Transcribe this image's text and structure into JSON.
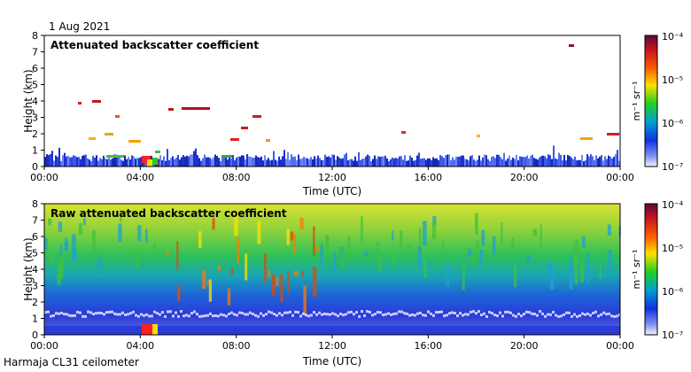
{
  "date": "1 Aug 2021",
  "footer": "Harmaja CL31 ceilometer",
  "chart_data": [
    {
      "type": "heatmap",
      "title": "Attenuated backscatter coefficient",
      "xlabel": "Time (UTC)",
      "ylabel": "Height (km)",
      "x_ticks": [
        "00:00",
        "04:00",
        "08:00",
        "12:00",
        "16:00",
        "20:00",
        "00:00"
      ],
      "y_ticks": [
        "0",
        "1",
        "2",
        "3",
        "4",
        "5",
        "6",
        "7",
        "8"
      ],
      "ylim": [
        0,
        8
      ],
      "xlim_hours": [
        0,
        24
      ],
      "colorbar": {
        "label": "m⁻¹ sr⁻¹",
        "tick_labels": [
          "10⁻⁴",
          "10⁻⁵",
          "10⁻⁶",
          "10⁻⁷"
        ],
        "scale": "log",
        "range": [
          1e-07,
          0.0001
        ]
      }
    },
    {
      "type": "heatmap",
      "title": "Raw attenuated backscatter coefficient",
      "xlabel": "Time (UTC)",
      "ylabel": "Height (km)",
      "x_ticks": [
        "00:00",
        "04:00",
        "08:00",
        "12:00",
        "16:00",
        "20:00",
        "00:00"
      ],
      "y_ticks": [
        "0",
        "1",
        "2",
        "3",
        "4",
        "5",
        "6",
        "7",
        "8"
      ],
      "ylim": [
        0,
        8
      ],
      "xlim_hours": [
        0,
        24
      ],
      "colorbar": {
        "label": "m⁻¹ sr⁻¹",
        "tick_labels": [
          "10⁻⁴",
          "10⁻⁵",
          "10⁻⁶",
          "10⁻⁷"
        ],
        "scale": "log",
        "range": [
          1e-07,
          0.0001
        ]
      }
    }
  ]
}
